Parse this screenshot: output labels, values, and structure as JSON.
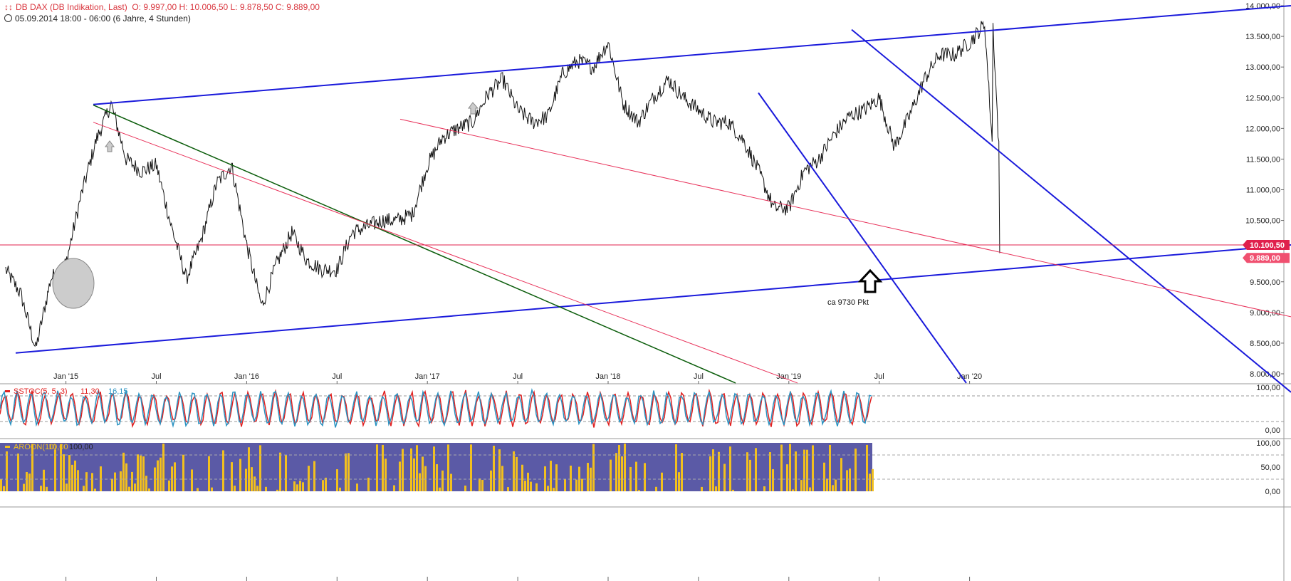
{
  "header": {
    "icon": "candlestick-chart-icon",
    "instrument": "DB DAX (DB Indikation, Last)",
    "ohlc": "O: 9.997,00  H: 10.006,50  L: 9.878,50  C: 9.889,00",
    "period": "05.09.2014 18:00 - 06:00  (6 Jahre, 4 Stunden)"
  },
  "colors": {
    "price": "#111111",
    "trend_blue": "#1a1adb",
    "trend_red": "#e8325a",
    "trend_green": "#0b5d0b",
    "hline": "#e0204c",
    "stoch_k": "#2b93c2",
    "stoch_d": "#e02020",
    "aroon_up": "#f2c01e",
    "aroon_down": "#5b5aa6",
    "annotation_marker": "#cccccc"
  },
  "chart_data": [
    {
      "type": "line",
      "y_axis_ticks": [
        "14.000,00",
        "13.500,00",
        "13.000,00",
        "12.500,00",
        "12.000,00",
        "11.500,00",
        "11.000,00",
        "10.500,00",
        "9.500,00",
        "9.000,00",
        "8.500,00",
        "8.000,00"
      ],
      "x_axis_ticks": [
        "Jan '15",
        "Jul",
        "Jan '16",
        "Jul",
        "Jan '17",
        "Jul",
        "Jan '18",
        "Jul",
        "Jan '19",
        "Jul",
        "Jan '20"
      ],
      "ylim": [
        8000,
        14000
      ],
      "series": [
        {
          "x": [
            "2014-09",
            "2014-10",
            "2014-11",
            "2014-12",
            "2015-01",
            "2015-02",
            "2015-03",
            "2015-04",
            "2015-05",
            "2015-06",
            "2015-07",
            "2015-08",
            "2015-09",
            "2015-10",
            "2015-11",
            "2015-12",
            "2016-01",
            "2016-02",
            "2016-03",
            "2016-04",
            "2016-05",
            "2016-06",
            "2016-07",
            "2016-08",
            "2016-09",
            "2016-10",
            "2016-11",
            "2016-12",
            "2017-01",
            "2017-02",
            "2017-03",
            "2017-04",
            "2017-05",
            "2017-06",
            "2017-07",
            "2017-08",
            "2017-09",
            "2017-10",
            "2017-11",
            "2017-12",
            "2018-01",
            "2018-02",
            "2018-03",
            "2018-04",
            "2018-05",
            "2018-06",
            "2018-07",
            "2018-08",
            "2018-09",
            "2018-10",
            "2018-11",
            "2018-12",
            "2019-01",
            "2019-02",
            "2019-03",
            "2019-04",
            "2019-05",
            "2019-06",
            "2019-07",
            "2019-08",
            "2019-09",
            "2019-10",
            "2019-11",
            "2019-12",
            "2020-01",
            "2020-02",
            "2020-03"
          ],
          "values": [
            9700,
            9300,
            8400,
            9550,
            9800,
            10900,
            11800,
            12400,
            11500,
            11300,
            11400,
            10400,
            9550,
            10200,
            11100,
            11400,
            10100,
            9100,
            9800,
            10300,
            9850,
            9700,
            9700,
            10300,
            10400,
            10500,
            10500,
            10600,
            11400,
            11850,
            12000,
            12100,
            12550,
            12800,
            12300,
            12100,
            12200,
            12900,
            13100,
            13000,
            13400,
            12400,
            12100,
            12500,
            12800,
            12500,
            12300,
            12100,
            12100,
            11800,
            11300,
            10700,
            10700,
            11300,
            11500,
            11900,
            12200,
            12300,
            12500,
            11700,
            12200,
            12800,
            13200,
            13200,
            13400,
            13700,
            9889
          ]
        },
        {
          "name": "10.100,50",
          "values": [
            10100.5
          ]
        },
        {
          "name": "9.889,00",
          "values": [
            9889
          ]
        }
      ],
      "price_labels": {
        "hline": "10.100,50",
        "last": "9.889,00"
      },
      "annotation": "ca 9730 Pkt"
    },
    {
      "type": "line",
      "title": "SSTOC(5, 5, 3)",
      "values_text": [
        "11,30",
        "16,15"
      ],
      "y_axis_ticks": [
        "100,00",
        "0,00"
      ],
      "ylim": [
        0,
        100
      ],
      "reference_levels": [
        80,
        20
      ]
    },
    {
      "type": "area",
      "title": "AROON(10)",
      "values_text": [
        "10,00",
        "100,00"
      ],
      "y_axis_ticks": [
        "100,00",
        "50,00",
        "0,00"
      ],
      "ylim": [
        0,
        100
      ],
      "reference_levels": [
        75,
        25
      ]
    }
  ]
}
